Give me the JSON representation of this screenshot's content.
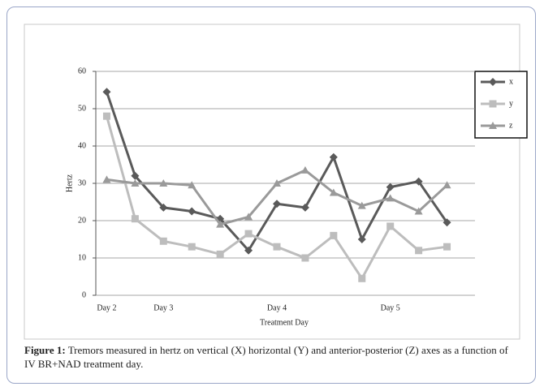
{
  "chart_data": {
    "type": "line",
    "y_label": "Hertz",
    "x_label": "Treatment Day",
    "categories": [
      "Day 2",
      null,
      "Day 3",
      null,
      null,
      null,
      "Day 4",
      null,
      null,
      null,
      "Day 5",
      null,
      null
    ],
    "series": [
      {
        "name": "x",
        "color": "#5a5a5a",
        "marker": "diamond",
        "values": [
          54.5,
          32,
          23.5,
          22.5,
          20.5,
          12,
          24.5,
          23.5,
          37,
          15,
          29,
          30.5,
          19.5
        ]
      },
      {
        "name": "y",
        "color": "#bdbdbd",
        "marker": "square",
        "values": [
          48,
          20.5,
          14.5,
          13,
          11,
          16.5,
          13,
          10,
          16,
          4.5,
          18.5,
          12,
          13
        ]
      },
      {
        "name": "z",
        "color": "#9a9a9a",
        "marker": "triangle",
        "values": [
          31,
          30,
          30,
          29.5,
          19,
          21,
          30,
          33.5,
          27.5,
          24,
          26,
          22.5,
          29.5
        ]
      }
    ],
    "ylim": [
      0,
      60
    ],
    "yticks": [
      0,
      10,
      20,
      30,
      40,
      50,
      60
    ],
    "grid": true,
    "legend": "right"
  },
  "caption": {
    "label": "Figure 1:",
    "text": "Tremors measured in hertz on vertical (X) horizontal (Y) and anterior-posterior (Z) axes as a function of IV BR+NAD treatment day."
  }
}
